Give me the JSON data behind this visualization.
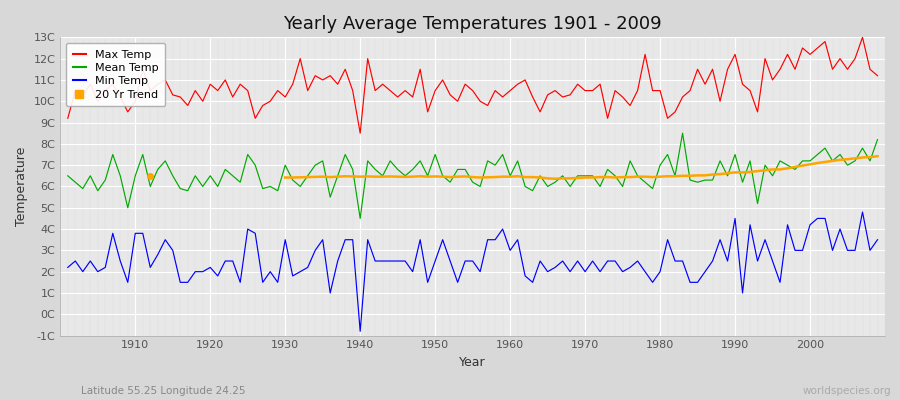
{
  "title": "Yearly Average Temperatures 1901 - 2009",
  "xlabel": "Year",
  "ylabel": "Temperature",
  "subtitle_left": "Latitude 55.25 Longitude 24.25",
  "subtitle_right": "worldspecies.org",
  "years": [
    1901,
    1902,
    1903,
    1904,
    1905,
    1906,
    1907,
    1908,
    1909,
    1910,
    1911,
    1912,
    1913,
    1914,
    1915,
    1916,
    1917,
    1918,
    1919,
    1920,
    1921,
    1922,
    1923,
    1924,
    1925,
    1926,
    1927,
    1928,
    1929,
    1930,
    1931,
    1932,
    1933,
    1934,
    1935,
    1936,
    1937,
    1938,
    1939,
    1940,
    1941,
    1942,
    1943,
    1944,
    1945,
    1946,
    1947,
    1948,
    1949,
    1950,
    1951,
    1952,
    1953,
    1954,
    1955,
    1956,
    1957,
    1958,
    1959,
    1960,
    1961,
    1962,
    1963,
    1964,
    1965,
    1966,
    1967,
    1968,
    1969,
    1970,
    1971,
    1972,
    1973,
    1974,
    1975,
    1976,
    1977,
    1978,
    1979,
    1980,
    1981,
    1982,
    1983,
    1984,
    1985,
    1986,
    1987,
    1988,
    1989,
    1990,
    1991,
    1992,
    1993,
    1994,
    1995,
    1996,
    1997,
    1998,
    1999,
    2000,
    2001,
    2002,
    2003,
    2004,
    2005,
    2006,
    2007,
    2008,
    2009
  ],
  "max_temp": [
    9.2,
    10.5,
    10.3,
    10.8,
    10.0,
    10.5,
    10.8,
    10.2,
    9.5,
    10.0,
    11.5,
    10.5,
    10.8,
    11.0,
    10.3,
    10.2,
    9.8,
    10.5,
    10.0,
    10.8,
    10.5,
    11.0,
    10.2,
    10.8,
    10.5,
    9.2,
    9.8,
    10.0,
    10.5,
    10.2,
    10.8,
    12.0,
    10.5,
    11.2,
    11.0,
    11.2,
    10.8,
    11.5,
    10.5,
    8.5,
    12.0,
    10.5,
    10.8,
    10.5,
    10.2,
    10.5,
    10.2,
    11.5,
    9.5,
    10.5,
    11.0,
    10.3,
    10.0,
    10.8,
    10.5,
    10.0,
    9.8,
    10.5,
    10.2,
    10.5,
    10.8,
    11.0,
    10.2,
    9.5,
    10.3,
    10.5,
    10.2,
    10.3,
    10.8,
    10.5,
    10.5,
    10.8,
    9.2,
    10.5,
    10.2,
    9.8,
    10.5,
    12.2,
    10.5,
    10.5,
    9.2,
    9.5,
    10.2,
    10.5,
    11.5,
    10.8,
    11.5,
    10.0,
    11.5,
    12.2,
    10.8,
    10.5,
    9.5,
    12.0,
    11.0,
    11.5,
    12.2,
    11.5,
    12.5,
    12.2,
    12.5,
    12.8,
    11.5,
    12.0,
    11.5,
    12.0,
    13.0,
    11.5,
    11.2
  ],
  "mean_temp": [
    6.5,
    6.2,
    5.9,
    6.5,
    5.8,
    6.3,
    7.5,
    6.5,
    5.0,
    6.5,
    7.5,
    6.0,
    6.8,
    7.2,
    6.5,
    5.9,
    5.8,
    6.5,
    6.0,
    6.5,
    6.0,
    6.8,
    6.5,
    6.2,
    7.5,
    7.0,
    5.9,
    6.0,
    5.8,
    7.0,
    6.3,
    6.0,
    6.5,
    7.0,
    7.2,
    5.5,
    6.5,
    7.5,
    6.8,
    4.5,
    7.2,
    6.8,
    6.5,
    7.2,
    6.8,
    6.5,
    6.8,
    7.2,
    6.5,
    7.5,
    6.5,
    6.2,
    6.8,
    6.8,
    6.2,
    6.0,
    7.2,
    7.0,
    7.5,
    6.5,
    7.2,
    6.0,
    5.8,
    6.5,
    6.0,
    6.2,
    6.5,
    6.0,
    6.5,
    6.5,
    6.5,
    6.0,
    6.8,
    6.5,
    6.0,
    7.2,
    6.5,
    6.2,
    5.9,
    7.0,
    7.5,
    6.5,
    8.5,
    6.3,
    6.2,
    6.3,
    6.3,
    7.2,
    6.5,
    7.5,
    6.2,
    7.2,
    5.2,
    7.0,
    6.5,
    7.2,
    7.0,
    6.8,
    7.2,
    7.2,
    7.5,
    7.8,
    7.2,
    7.5,
    7.0,
    7.2,
    7.8,
    7.2,
    8.2
  ],
  "min_temp": [
    2.2,
    2.5,
    2.0,
    2.5,
    2.0,
    2.2,
    3.8,
    2.5,
    1.5,
    3.8,
    3.8,
    2.2,
    2.8,
    3.5,
    3.0,
    1.5,
    1.5,
    2.0,
    2.0,
    2.2,
    1.8,
    2.5,
    2.5,
    1.5,
    4.0,
    3.8,
    1.5,
    2.0,
    1.5,
    3.5,
    1.8,
    2.0,
    2.2,
    3.0,
    3.5,
    1.0,
    2.5,
    3.5,
    3.5,
    -0.8,
    3.5,
    2.5,
    2.5,
    2.5,
    2.5,
    2.5,
    2.0,
    3.5,
    1.5,
    2.5,
    3.5,
    2.5,
    1.5,
    2.5,
    2.5,
    2.0,
    3.5,
    3.5,
    4.0,
    3.0,
    3.5,
    1.8,
    1.5,
    2.5,
    2.0,
    2.2,
    2.5,
    2.0,
    2.5,
    2.0,
    2.5,
    2.0,
    2.5,
    2.5,
    2.0,
    2.2,
    2.5,
    2.0,
    1.5,
    2.0,
    3.5,
    2.5,
    2.5,
    1.5,
    1.5,
    2.0,
    2.5,
    3.5,
    2.5,
    4.5,
    1.0,
    4.2,
    2.5,
    3.5,
    2.5,
    1.5,
    4.2,
    3.0,
    3.0,
    4.2,
    4.5,
    4.5,
    3.0,
    4.0,
    3.0,
    3.0,
    4.8,
    3.0,
    3.5
  ],
  "trend_years": [
    1930,
    1931,
    1932,
    1933,
    1934,
    1935,
    1936,
    1937,
    1938,
    1939,
    1940,
    1941,
    1942,
    1943,
    1944,
    1945,
    1946,
    1947,
    1948,
    1949,
    1950,
    1951,
    1952,
    1953,
    1954,
    1955,
    1956,
    1957,
    1958,
    1959,
    1960,
    1961,
    1962,
    1963,
    1964,
    1965,
    1966,
    1967,
    1968,
    1969,
    1970,
    1971,
    1972,
    1973,
    1974,
    1975,
    1976,
    1977,
    1978,
    1979,
    1980,
    1981,
    1982,
    1983,
    1984,
    1985,
    1986,
    1987,
    1988,
    1989,
    1990,
    1991,
    1992,
    1993,
    1994,
    1995,
    1996,
    1997,
    1998,
    1999,
    2000,
    2001,
    2002,
    2003,
    2004,
    2005,
    2006,
    2007,
    2008,
    2009
  ],
  "trend_values": [
    6.42,
    6.42,
    6.43,
    6.44,
    6.45,
    6.46,
    6.44,
    6.46,
    6.48,
    6.47,
    6.46,
    6.47,
    6.46,
    6.46,
    6.47,
    6.46,
    6.45,
    6.46,
    6.48,
    6.46,
    6.47,
    6.46,
    6.44,
    6.46,
    6.47,
    6.44,
    6.42,
    6.43,
    6.44,
    6.46,
    6.46,
    6.48,
    6.44,
    6.44,
    6.42,
    6.38,
    6.36,
    6.38,
    6.38,
    6.4,
    6.42,
    6.42,
    6.44,
    6.44,
    6.42,
    6.44,
    6.44,
    6.46,
    6.46,
    6.44,
    6.46,
    6.48,
    6.48,
    6.5,
    6.5,
    6.52,
    6.52,
    6.56,
    6.58,
    6.62,
    6.66,
    6.66,
    6.68,
    6.72,
    6.76,
    6.8,
    6.8,
    6.85,
    6.92,
    6.98,
    7.04,
    7.1,
    7.15,
    7.2,
    7.25,
    7.28,
    7.32,
    7.36,
    7.38,
    7.42
  ],
  "trend_dot_year": 1912,
  "trend_dot_value": 6.5,
  "max_color": "#ff0000",
  "mean_color": "#00aa00",
  "min_color": "#0000ff",
  "trend_color": "#ffa500",
  "bg_color": "#d8d8d8",
  "plot_bg_color": "#e8e8e8",
  "grid_major_color": "#ffffff",
  "grid_minor_color": "#dddddd",
  "ylim": [
    -1,
    13
  ],
  "yticks": [
    -1,
    0,
    1,
    2,
    3,
    4,
    5,
    6,
    7,
    8,
    9,
    10,
    11,
    12,
    13
  ],
  "ytick_labels": [
    "-1C",
    "0C",
    "1C",
    "2C",
    "3C",
    "4C",
    "5C",
    "6C",
    "7C",
    "8C",
    "9C",
    "10C",
    "11C",
    "12C",
    "13C"
  ],
  "xlim": [
    1900,
    2010
  ],
  "xticks": [
    1910,
    1920,
    1930,
    1940,
    1950,
    1960,
    1970,
    1980,
    1990,
    2000
  ],
  "title_fontsize": 13,
  "axis_label_fontsize": 9,
  "tick_fontsize": 8
}
